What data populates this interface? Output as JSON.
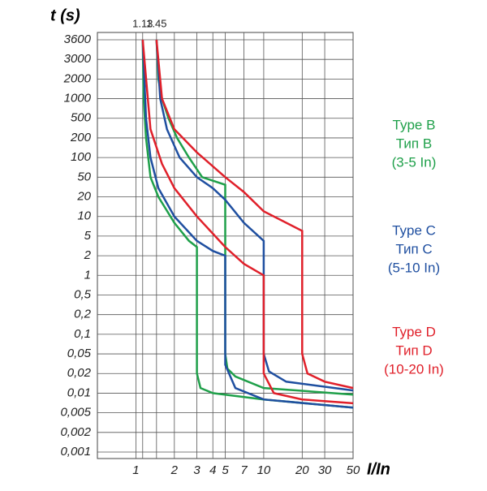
{
  "chart_data": {
    "type": "line",
    "y_title": "t (s)",
    "x_title": "I/In",
    "xscale": "log",
    "yscale": "tick-spaced log",
    "grid": true,
    "xlim": [
      0.5,
      50
    ],
    "xticks": [
      1,
      2,
      3,
      4,
      5,
      7,
      10,
      20,
      30,
      50
    ],
    "xticks_top": [
      1.13,
      1.45
    ],
    "ylim": [
      0.001,
      3600
    ],
    "yticks": [
      3600,
      3000,
      2000,
      1000,
      500,
      200,
      100,
      50,
      20,
      10,
      5,
      2,
      1,
      {
        "value": 0.5,
        "label": "0,5"
      },
      {
        "value": 0.2,
        "label": "0,2"
      },
      {
        "value": 0.1,
        "label": "0,1"
      },
      {
        "value": 0.05,
        "label": "0,05"
      },
      {
        "value": 0.02,
        "label": "0,02"
      },
      {
        "value": 0.01,
        "label": "0,01"
      },
      {
        "value": 0.005,
        "label": "0,005"
      },
      {
        "value": 0.002,
        "label": "0,002"
      },
      {
        "value": 0.001,
        "label": "0,001"
      }
    ],
    "series": [
      {
        "name": "Type B",
        "name_ru": "Тип B",
        "range": "(3-5 In)",
        "color": "#1fa04a",
        "curves": [
          {
            "x": [
              1.45,
              1.5,
              1.6,
              1.8,
              2.1,
              2.6,
              3.3,
              5,
              5,
              5,
              5.2,
              6,
              10,
              50
            ],
            "values": [
              3600,
              2000,
              1000,
              500,
              200,
              100,
              50,
              35,
              20,
              0.05,
              0.025,
              0.018,
              0.012,
              0.0095
            ]
          },
          {
            "x": [
              1.13,
              1.15,
              1.2,
              1.3,
              1.5,
              2,
              2.6,
              3,
              3,
              3.2,
              4,
              10,
              50
            ],
            "values": [
              3600,
              1000,
              200,
              50,
              20,
              8,
              4,
              3,
              0.02,
              0.012,
              0.01,
              0.008,
              0.006
            ]
          }
        ]
      },
      {
        "name": "Type C",
        "name_ru": "Тип C",
        "range": "(5-10 In)",
        "color": "#1f4fa0",
        "curves": [
          {
            "x": [
              1.45,
              1.55,
              1.75,
              2.2,
              3,
              4,
              5,
              7,
              10,
              10,
              11,
              15,
              50
            ],
            "values": [
              3600,
              1000,
              300,
              100,
              50,
              30,
              18,
              8,
              4,
              0.05,
              0.022,
              0.015,
              0.011
            ]
          },
          {
            "x": [
              1.13,
              1.2,
              1.3,
              1.5,
              2,
              3,
              4,
              5,
              5,
              6,
              10,
              50
            ],
            "values": [
              3600,
              500,
              100,
              30,
              10,
              4,
              2.5,
              2,
              0.03,
              0.012,
              0.008,
              0.006
            ]
          }
        ]
      },
      {
        "name": "Type D",
        "name_ru": "Тип D",
        "range": "(10-20 In)",
        "color": "#e0202a",
        "curves": [
          {
            "x": [
              1.45,
              1.6,
              2,
              3,
              5,
              7,
              10,
              20,
              20,
              22,
              30,
              50
            ],
            "values": [
              3600,
              1000,
              300,
              120,
              50,
              25,
              12,
              6,
              0.05,
              0.02,
              0.015,
              0.012
            ]
          },
          {
            "x": [
              1.13,
              1.3,
              1.6,
              2,
              3,
              5,
              7,
              10,
              10,
              12,
              20,
              50
            ],
            "values": [
              3600,
              300,
              80,
              30,
              10,
              3,
              1.5,
              1,
              0.02,
              0.01,
              0.008,
              0.007
            ]
          }
        ]
      }
    ]
  }
}
